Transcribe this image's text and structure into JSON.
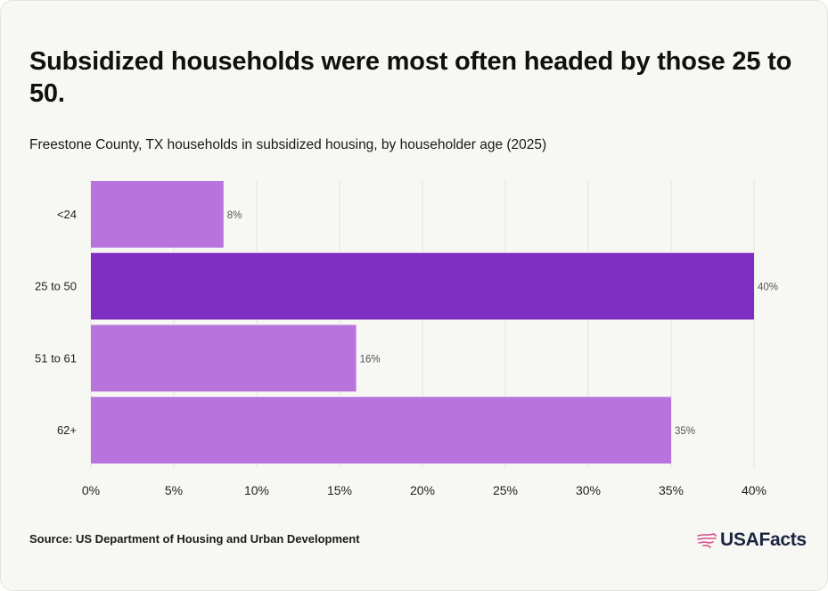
{
  "title": "Subsidized households were most often headed by those 25 to 50.",
  "subtitle": "Freestone County, TX households in subsidized housing, by householder age (2025)",
  "source": "Source: US Department of Housing and Urban Development",
  "brand": {
    "name": "USAFacts",
    "icon": "usa-map-icon",
    "icon_color": "#d94b8c"
  },
  "chart_data": {
    "type": "bar",
    "orientation": "horizontal",
    "categories": [
      "<24",
      "25 to 50",
      "51 to 61",
      "62+"
    ],
    "values": [
      8,
      40,
      16,
      35
    ],
    "value_labels": [
      "8%",
      "40%",
      "16%",
      "35%"
    ],
    "highlight_index": 1,
    "xlim": [
      0,
      40
    ],
    "x_ticks": [
      0,
      5,
      10,
      15,
      20,
      25,
      30,
      35,
      40
    ],
    "x_tick_labels": [
      "0%",
      "5%",
      "10%",
      "15%",
      "20%",
      "25%",
      "30%",
      "35%",
      "40%"
    ],
    "grid": "vertical",
    "colors": {
      "bar": "#b873dd",
      "highlight": "#7e2fc1",
      "grid": "#e4e4de",
      "label": "#555555"
    }
  }
}
